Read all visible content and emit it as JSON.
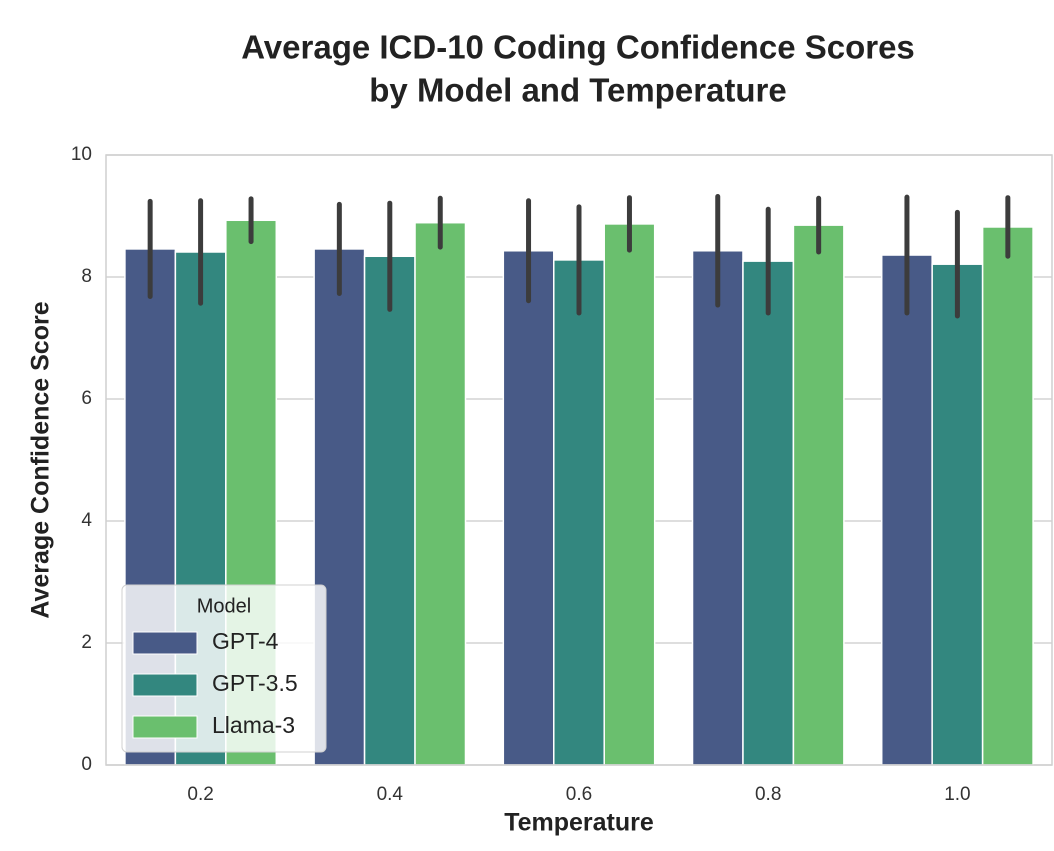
{
  "chart_data": {
    "type": "bar",
    "title": [
      "Average ICD-10 Coding Confidence Scores",
      "by Model and Temperature"
    ],
    "x_label": "Temperature",
    "y_label": "Average Confidence Score",
    "categories": [
      "0.2",
      "0.4",
      "0.6",
      "0.8",
      "1.0"
    ],
    "series": [
      {
        "name": "GPT-4",
        "color": "#485a87",
        "values": [
          8.46,
          8.46,
          8.43,
          8.43,
          8.36
        ],
        "errors": [
          0.78,
          0.73,
          0.82,
          0.89,
          0.95
        ]
      },
      {
        "name": "GPT-3.5",
        "color": "#33877f",
        "values": [
          8.41,
          8.34,
          8.28,
          8.26,
          8.21
        ],
        "errors": [
          0.84,
          0.87,
          0.87,
          0.85,
          0.85
        ]
      },
      {
        "name": "Llama-3",
        "color": "#6abf6e",
        "values": [
          8.93,
          8.89,
          8.87,
          8.85,
          8.82
        ],
        "errors": [
          0.35,
          0.4,
          0.43,
          0.44,
          0.48
        ]
      }
    ],
    "ylim": [
      0,
      10
    ],
    "yticks": [
      0,
      2,
      4,
      6,
      8,
      10
    ],
    "grid": true,
    "legend_title": "Model",
    "legend_position": "lower left"
  }
}
